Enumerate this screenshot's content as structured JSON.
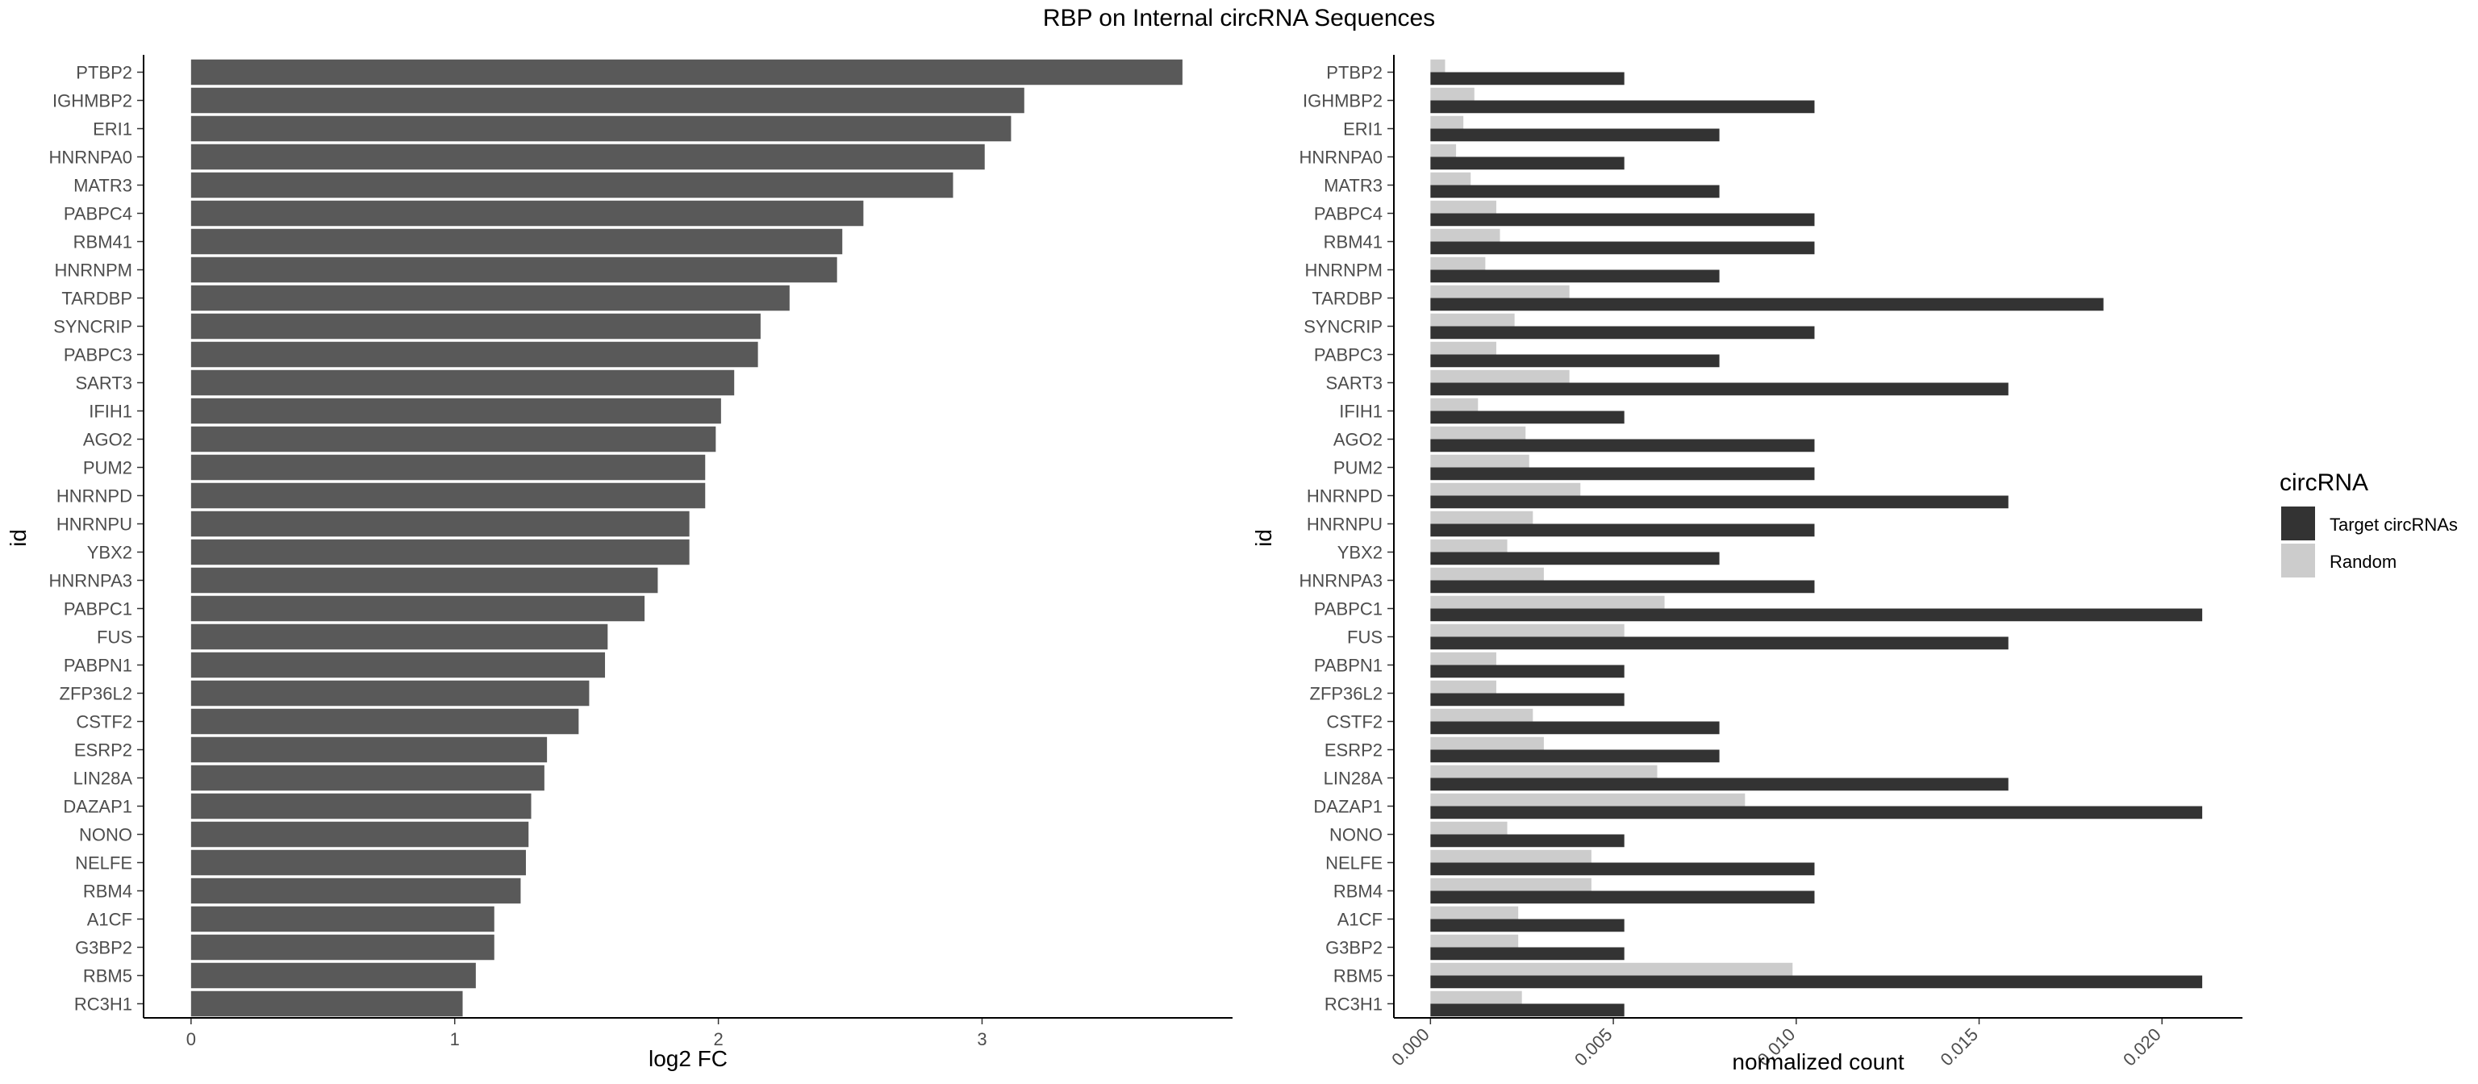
{
  "title": "RBP on Internal circRNA Sequences",
  "chart_data": [
    {
      "type": "bar",
      "orientation": "horizontal",
      "xlabel": "log2 FC",
      "ylabel": "id",
      "xlim": [
        -0.18,
        3.95
      ],
      "xticks": [
        0,
        1,
        2,
        3
      ],
      "grid": false,
      "bar_color": "#595959",
      "categories": [
        "PTBP2",
        "IGHMBP2",
        "ERI1",
        "HNRNPA0",
        "MATR3",
        "PABPC4",
        "RBM41",
        "HNRNPM",
        "TARDBP",
        "SYNCRIP",
        "PABPC3",
        "SART3",
        "IFIH1",
        "AGO2",
        "PUM2",
        "HNRNPD",
        "HNRNPU",
        "YBX2",
        "HNRNPA3",
        "PABPC1",
        "FUS",
        "PABPN1",
        "ZFP36L2",
        "CSTF2",
        "ESRP2",
        "LIN28A",
        "DAZAP1",
        "NONO",
        "NELFE",
        "RBM4",
        "A1CF",
        "G3BP2",
        "RBM5",
        "RC3H1"
      ],
      "values": [
        3.76,
        3.16,
        3.11,
        3.01,
        2.89,
        2.55,
        2.47,
        2.45,
        2.27,
        2.16,
        2.15,
        2.06,
        2.01,
        1.99,
        1.95,
        1.95,
        1.89,
        1.89,
        1.77,
        1.72,
        1.58,
        1.57,
        1.51,
        1.47,
        1.35,
        1.34,
        1.29,
        1.28,
        1.27,
        1.25,
        1.15,
        1.15,
        1.08,
        1.03
      ]
    },
    {
      "type": "bar",
      "orientation": "horizontal",
      "xlabel": "normalized count",
      "ylabel": "id",
      "xlim": [
        -0.001,
        0.0222
      ],
      "xticks": [
        "0.000",
        "0.005",
        "0.010",
        "0.015",
        "0.020"
      ],
      "grid": false,
      "legend": {
        "title": "circRNA",
        "position": "right",
        "entries": [
          {
            "name": "Target circRNAs",
            "color": "#333333"
          },
          {
            "name": "Random",
            "color": "#cccccc"
          }
        ]
      },
      "categories": [
        "PTBP2",
        "IGHMBP2",
        "ERI1",
        "HNRNPA0",
        "MATR3",
        "PABPC4",
        "RBM41",
        "HNRNPM",
        "TARDBP",
        "SYNCRIP",
        "PABPC3",
        "SART3",
        "IFIH1",
        "AGO2",
        "PUM2",
        "HNRNPD",
        "HNRNPU",
        "YBX2",
        "HNRNPA3",
        "PABPC1",
        "FUS",
        "PABPN1",
        "ZFP36L2",
        "CSTF2",
        "ESRP2",
        "LIN28A",
        "DAZAP1",
        "NONO",
        "NELFE",
        "RBM4",
        "A1CF",
        "G3BP2",
        "RBM5",
        "RC3H1"
      ],
      "series": [
        {
          "name": "Target circRNAs",
          "color": "#333333",
          "values": [
            0.0053,
            0.0105,
            0.0079,
            0.0053,
            0.0079,
            0.0105,
            0.0105,
            0.0079,
            0.0184,
            0.0105,
            0.0079,
            0.0158,
            0.0053,
            0.0105,
            0.0105,
            0.0158,
            0.0105,
            0.0079,
            0.0105,
            0.0211,
            0.0158,
            0.0053,
            0.0053,
            0.0079,
            0.0079,
            0.0158,
            0.0211,
            0.0053,
            0.0105,
            0.0105,
            0.0053,
            0.0053,
            0.0211,
            0.0053
          ]
        },
        {
          "name": "Random",
          "color": "#cccccc",
          "values": [
            0.0004,
            0.0012,
            0.0009,
            0.0007,
            0.0011,
            0.0018,
            0.0019,
            0.0015,
            0.0038,
            0.0023,
            0.0018,
            0.0038,
            0.0013,
            0.0026,
            0.0027,
            0.0041,
            0.0028,
            0.0021,
            0.0031,
            0.0064,
            0.0053,
            0.0018,
            0.0018,
            0.0028,
            0.0031,
            0.0062,
            0.0086,
            0.0021,
            0.0044,
            0.0044,
            0.0024,
            0.0024,
            0.0099,
            0.0025
          ]
        }
      ]
    }
  ]
}
